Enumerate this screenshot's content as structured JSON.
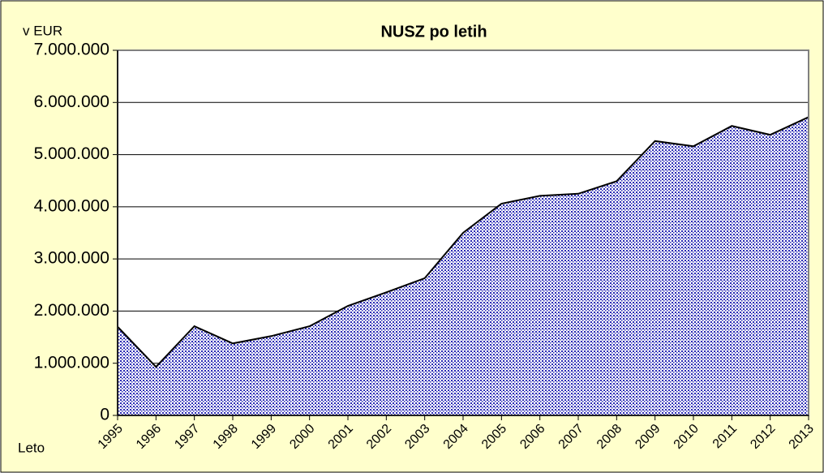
{
  "chart_data": {
    "type": "area",
    "title": "NUSZ po letih",
    "ylabel": "v EUR",
    "xlabel": "Leto",
    "categories": [
      "1995",
      "1996",
      "1997",
      "1998",
      "1999",
      "2000",
      "2001",
      "2002",
      "2003",
      "2004",
      "2005",
      "2006",
      "2007",
      "2008",
      "2009",
      "2010",
      "2011",
      "2012",
      "2013"
    ],
    "values": [
      1700000,
      930000,
      1710000,
      1380000,
      1520000,
      1710000,
      2100000,
      2360000,
      2630000,
      3500000,
      4060000,
      4210000,
      4250000,
      4490000,
      5260000,
      5160000,
      5550000,
      5380000,
      5720000
    ],
    "color": "#2b2bb5",
    "ylim": [
      0,
      7000000
    ],
    "yticks": [
      0,
      {
        "value": 1000000,
        "label": "1.000.000"
      },
      {
        "value": 2000000,
        "label": "2.000.000"
      },
      {
        "value": 3000000,
        "label": "3.000.000"
      },
      {
        "value": 4000000,
        "label": "4.000.000"
      },
      {
        "value": 5000000,
        "label": "5.000.000"
      },
      {
        "value": 6000000,
        "label": "6.000.000"
      },
      {
        "value": 7000000,
        "label": "7.000.000"
      }
    ],
    "grid": true
  }
}
